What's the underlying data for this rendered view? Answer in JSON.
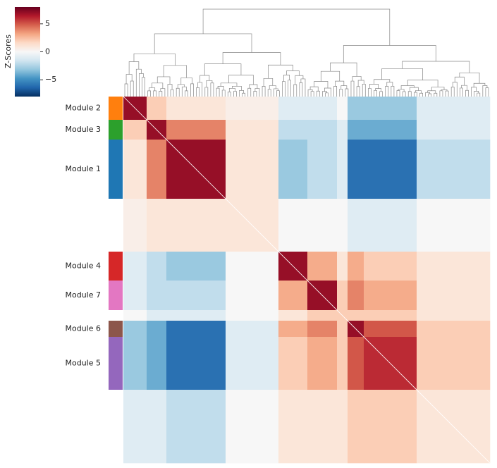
{
  "chart_data": {
    "type": "heatmap",
    "colorbar_label": "Z-Scores",
    "colormap": "RdBu_r",
    "zlim": [
      -8,
      8
    ],
    "zticks": [
      {
        "value": 5,
        "label": "5"
      },
      {
        "value": 0,
        "label": "0"
      },
      {
        "value": -5,
        "label": "−5"
      }
    ],
    "modules": [
      {
        "name": "Module 2",
        "color": "#ff7f0e",
        "size": 33
      },
      {
        "name": "Module 3",
        "color": "#2ca02c",
        "size": 28
      },
      {
        "name": "Module 1",
        "color": "#1f77b4",
        "size": 84
      },
      {
        "name": null,
        "color": null,
        "size": 75
      },
      {
        "name": "Module 4",
        "color": "#d62728",
        "size": 41
      },
      {
        "name": "Module 7",
        "color": "#e377c2",
        "size": 42
      },
      {
        "name": null,
        "color": null,
        "size": 15
      },
      {
        "name": "Module 6",
        "color": "#8c564b",
        "size": 23
      },
      {
        "name": "Module 5",
        "color": "#9467bd",
        "size": 75
      },
      {
        "name": null,
        "color": null,
        "size": 104
      }
    ],
    "values": [
      [
        7,
        2,
        1,
        0.5,
        -1,
        -1,
        0,
        -3,
        -3,
        -1
      ],
      [
        2,
        7,
        4,
        1,
        -2,
        -2,
        -1,
        -4,
        -4,
        -1
      ],
      [
        1,
        4,
        7,
        1,
        -3,
        -2,
        -1,
        -6,
        -6,
        -2
      ],
      [
        0.5,
        1,
        1,
        1,
        0,
        0,
        0,
        -1,
        -1,
        0
      ],
      [
        -1,
        -2,
        -3,
        0,
        7,
        3,
        1,
        3,
        2,
        1
      ],
      [
        -1,
        -2,
        -2,
        0,
        3,
        7,
        2,
        4,
        3,
        1
      ],
      [
        0,
        -1,
        -1,
        0,
        1,
        2,
        2,
        2,
        2,
        1
      ],
      [
        -3,
        -4,
        -6,
        -1,
        3,
        4,
        2,
        7,
        5,
        2
      ],
      [
        -3,
        -4,
        -6,
        -1,
        2,
        3,
        2,
        5,
        6,
        2
      ],
      [
        -1,
        -1,
        -2,
        0,
        1,
        1,
        1,
        2,
        2,
        1
      ]
    ]
  }
}
